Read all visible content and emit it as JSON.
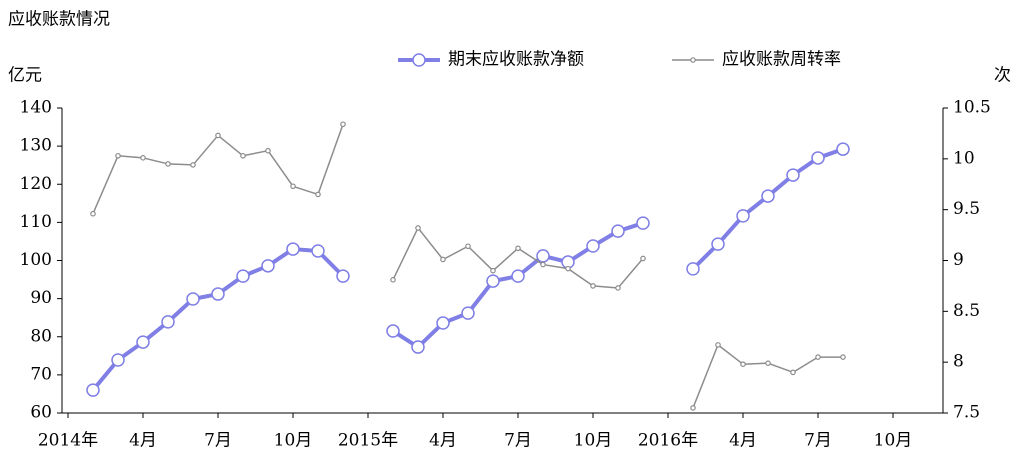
{
  "chart_data": {
    "type": "line",
    "title": "应收账款情况",
    "y_label": "亿元",
    "y2_label": "次",
    "categories": [
      "2014年",
      null,
      null,
      "4月",
      null,
      null,
      "7月",
      null,
      null,
      "10月",
      null,
      null,
      "2015年",
      null,
      null,
      "4月",
      null,
      null,
      "7月",
      null,
      null,
      "10月",
      null,
      null,
      "2016年",
      null,
      null,
      "4月",
      null,
      null,
      "7月",
      null,
      null,
      "10月",
      null,
      null
    ],
    "series": [
      {
        "name": "期末应收账款净额",
        "color": "#7f7fe6",
        "values": [
          null,
          66.0,
          73.9,
          78.6,
          83.9,
          89.9,
          91.2,
          95.9,
          98.6,
          103.0,
          102.5,
          95.9,
          null,
          81.5,
          77.3,
          83.6,
          86.2,
          94.6,
          95.9,
          101.2,
          99.6,
          103.8,
          107.7,
          109.8,
          null,
          97.8,
          104.3,
          111.7,
          116.9,
          122.4,
          126.9,
          129.2,
          null,
          null,
          null,
          null
        ]
      },
      {
        "name": "应收账款周转率",
        "color": "#8c8c8c",
        "axis": "y2",
        "values": [
          null,
          9.46,
          10.03,
          10.01,
          9.95,
          9.94,
          10.23,
          10.03,
          10.08,
          9.73,
          9.65,
          10.34,
          null,
          8.81,
          9.32,
          9.01,
          9.14,
          8.9,
          9.12,
          8.96,
          8.92,
          8.75,
          8.73,
          9.02,
          null,
          7.55,
          8.17,
          7.98,
          7.99,
          7.9,
          8.05,
          8.05,
          null,
          null,
          null,
          null
        ]
      }
    ],
    "ylim": [
      60,
      140
    ],
    "yticks": [
      60,
      70,
      80,
      90,
      100,
      110,
      120,
      130,
      140
    ],
    "y2lim": [
      7.5,
      10.5
    ],
    "y2ticks": [
      7.5,
      8,
      8.5,
      9,
      9.5,
      10,
      10.5
    ],
    "legend": "top",
    "grid": false
  }
}
